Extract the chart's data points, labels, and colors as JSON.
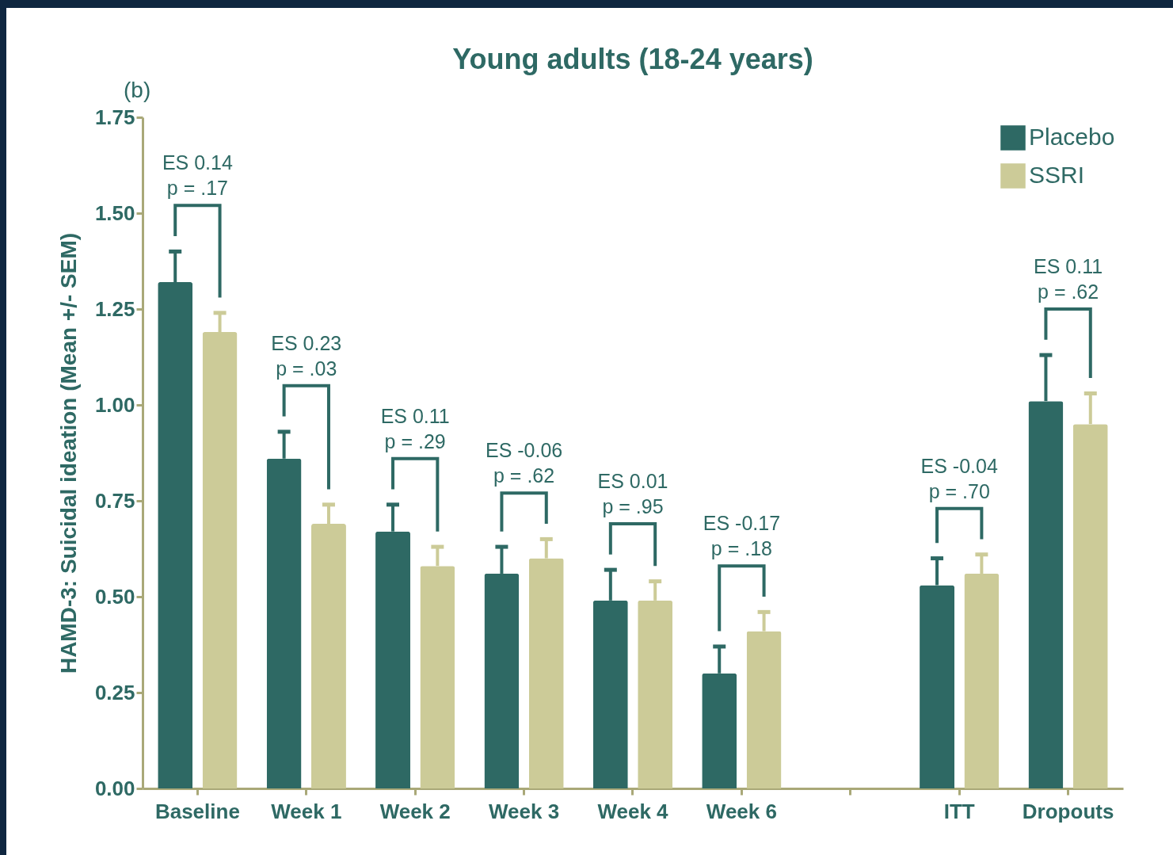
{
  "chart_data": {
    "type": "bar",
    "title": "Young adults (18-24 years)",
    "ylabel": "HAMD-3:  Suicidal ideation (Mean +/- SEM)",
    "categories": [
      "Baseline",
      "Week 1",
      "Week 2",
      "Week 3",
      "Week 4",
      "Week 6",
      null,
      "ITT",
      "Dropouts"
    ],
    "series": [
      {
        "name": "Placebo",
        "color": "#2e6964",
        "values": [
          1.32,
          0.86,
          0.67,
          0.56,
          0.49,
          0.3,
          null,
          0.53,
          1.01
        ],
        "errors": [
          [
            1.32,
            1.4
          ],
          [
            0.86,
            0.93
          ],
          [
            0.67,
            0.74
          ],
          [
            0.56,
            0.63
          ],
          [
            0.49,
            0.57
          ],
          [
            0.3,
            0.37
          ],
          null,
          [
            0.53,
            0.6
          ],
          [
            1.01,
            1.13
          ]
        ]
      },
      {
        "name": "SSRI",
        "color": "#cccb98",
        "values": [
          1.19,
          0.69,
          0.58,
          0.6,
          0.49,
          0.41,
          null,
          0.56,
          0.95
        ],
        "errors": [
          [
            1.19,
            1.24
          ],
          [
            0.69,
            0.74
          ],
          [
            0.58,
            0.63
          ],
          [
            0.6,
            0.65
          ],
          [
            0.49,
            0.54
          ],
          [
            0.41,
            0.46
          ],
          null,
          [
            0.56,
            0.61
          ],
          [
            0.95,
            1.03
          ]
        ]
      }
    ],
    "ylim": [
      0,
      1.75
    ],
    "yticks": [
      {
        "value": 0,
        "label": "0.00"
      },
      {
        "value": 0.25,
        "label": "0.25"
      },
      {
        "value": 0.5,
        "label": "0.50"
      },
      {
        "value": 0.75,
        "label": "0.75"
      },
      {
        "value": 1,
        "label": "1.00"
      },
      {
        "value": 1.25,
        "label": "1.25"
      },
      {
        "value": 1.5,
        "label": "1.50"
      },
      {
        "value": 1.75,
        "label": "1.75"
      }
    ],
    "grid": false,
    "legend": "top right",
    "annotations": [
      "(b)",
      "ES 0.14\np = .17",
      "ES 0.23\np = .03",
      "ES 0.11\np = .29",
      "ES -0.06\np = .62",
      "ES 0.01\np = .95",
      "ES -0.17\np = .18",
      "ES -0.04\np = .70",
      "ES 0.11\np = .62"
    ]
  }
}
